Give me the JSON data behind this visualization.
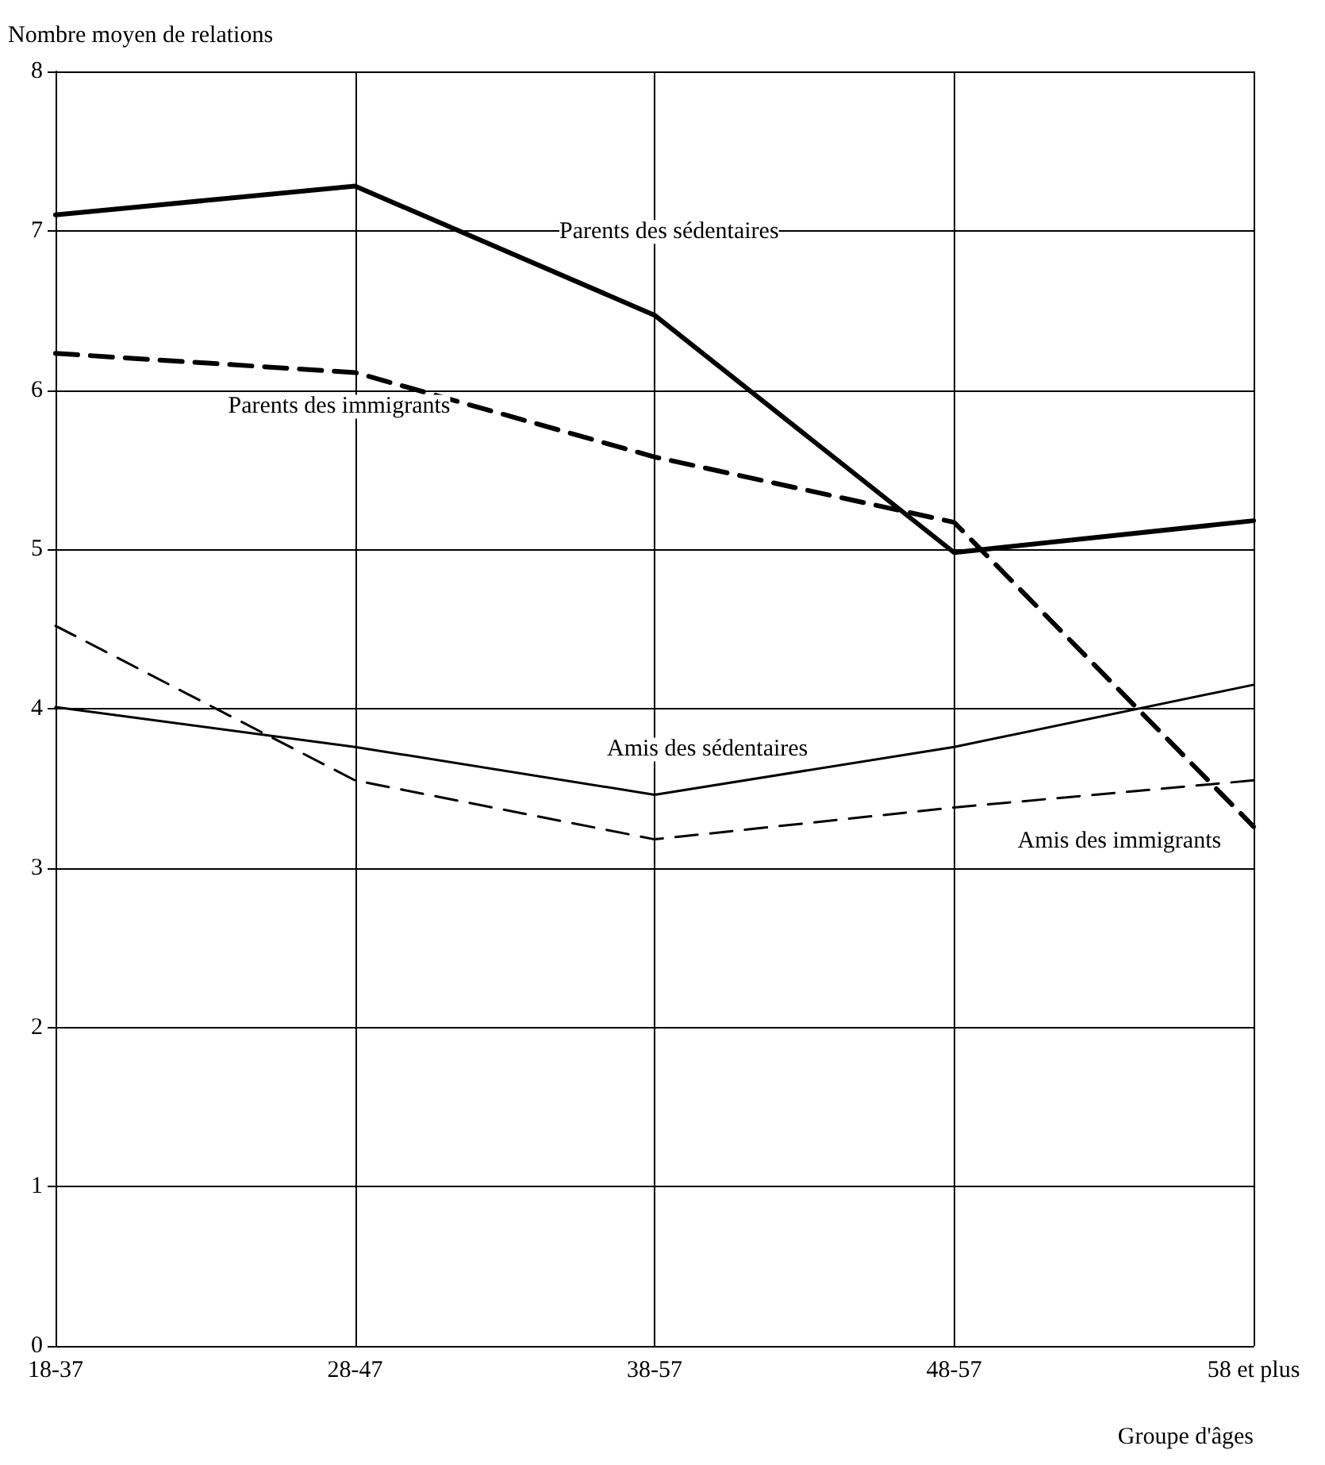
{
  "chart_data": {
    "type": "line",
    "ylabel": "Nombre moyen de relations",
    "xlabel": "Groupe d'âges",
    "categories": [
      "18-37",
      "28-47",
      "38-57",
      "48-57",
      "58 et plus"
    ],
    "ylim": [
      0,
      8
    ],
    "yticks": [
      0,
      1,
      2,
      3,
      4,
      5,
      6,
      7,
      8
    ],
    "grid": true,
    "legend": false,
    "marker": "none",
    "series": [
      {
        "name": "Parents des sédentaires",
        "color": "#000000",
        "line_style": "solid",
        "values": [
          7.1,
          7.28,
          6.47,
          4.98,
          5.18
        ]
      },
      {
        "name": "Parents des immigrants",
        "color": "#000000",
        "line_style": "dashed",
        "values": [
          6.23,
          6.11,
          5.58,
          5.17,
          3.26
        ]
      },
      {
        "name": "Amis des sédentaires",
        "color": "#000000",
        "line_style": "solid",
        "values": [
          4.01,
          3.76,
          3.46,
          3.76,
          4.15
        ]
      },
      {
        "name": "Amis des immigrants",
        "color": "#000000",
        "line_style": "dashed",
        "values": [
          4.52,
          3.55,
          3.18,
          3.38,
          3.55
        ]
      }
    ]
  }
}
